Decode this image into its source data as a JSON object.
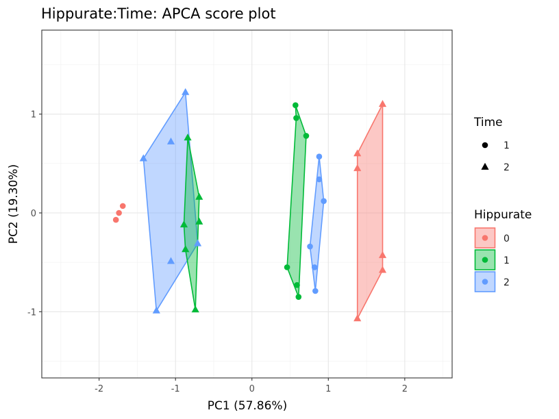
{
  "chart_data": {
    "type": "scatter",
    "title": "Hippurate:Time: APCA score plot",
    "xlabel": "PC1 (57.86%)",
    "ylabel": "PC2 (19.30%)",
    "xlim": [
      -2.75,
      2.62
    ],
    "ylim": [
      -1.67,
      1.85
    ],
    "x_ticks": [
      -2,
      -1,
      0,
      1,
      2
    ],
    "x_tick_labels": [
      "-2",
      "-1",
      "0",
      "1",
      "2"
    ],
    "y_ticks": [
      -1,
      0,
      1
    ],
    "y_tick_labels": [
      "-1",
      "0",
      "1"
    ],
    "grid": true,
    "colors": {
      "0": "#f8766d",
      "1": "#00ba38",
      "2": "#619cff"
    },
    "legend_shape": {
      "title": "Time",
      "items": [
        {
          "label": "1",
          "shape": "circle"
        },
        {
          "label": "2",
          "shape": "triangle"
        }
      ]
    },
    "legend_color": {
      "title": "Hippurate",
      "items": [
        {
          "label": "0",
          "group": "0"
        },
        {
          "label": "1",
          "group": "1"
        },
        {
          "label": "2",
          "group": "2"
        }
      ]
    },
    "hulls": [
      {
        "group": "2",
        "points": [
          [
            -0.87,
            1.22
          ],
          [
            -1.42,
            0.55
          ],
          [
            -1.25,
            -0.99
          ],
          [
            -0.71,
            -0.31
          ]
        ]
      },
      {
        "group": "1",
        "points": [
          [
            -0.84,
            0.76
          ],
          [
            -0.69,
            0.16
          ],
          [
            -0.74,
            -0.98
          ],
          [
            -0.87,
            -0.37
          ],
          [
            -0.89,
            -0.12
          ]
        ]
      },
      {
        "group": "1",
        "points": [
          [
            0.57,
            1.09
          ],
          [
            0.71,
            0.78
          ],
          [
            0.61,
            -0.85
          ],
          [
            0.46,
            -0.55
          ],
          [
            0.58,
            0.96
          ]
        ]
      },
      {
        "group": "2",
        "points": [
          [
            0.88,
            0.57
          ],
          [
            0.94,
            0.12
          ],
          [
            0.83,
            -0.79
          ],
          [
            0.76,
            -0.34
          ]
        ]
      },
      {
        "group": "0",
        "points": [
          [
            1.71,
            1.1
          ],
          [
            1.71,
            -0.58
          ],
          [
            1.38,
            -1.07
          ],
          [
            1.38,
            0.45
          ],
          [
            1.38,
            0.6
          ]
        ]
      }
    ],
    "points": [
      {
        "group": "0",
        "time": "1",
        "x": -1.69,
        "y": 0.07
      },
      {
        "group": "0",
        "time": "1",
        "x": -1.74,
        "y": 0.0
      },
      {
        "group": "0",
        "time": "1",
        "x": -1.78,
        "y": -0.07
      },
      {
        "group": "2",
        "time": "2",
        "x": -0.87,
        "y": 1.22
      },
      {
        "group": "2",
        "time": "2",
        "x": -1.42,
        "y": 0.55
      },
      {
        "group": "2",
        "time": "2",
        "x": -1.06,
        "y": 0.72
      },
      {
        "group": "2",
        "time": "2",
        "x": -1.06,
        "y": -0.49
      },
      {
        "group": "2",
        "time": "2",
        "x": -1.25,
        "y": -0.99
      },
      {
        "group": "2",
        "time": "2",
        "x": -0.71,
        "y": -0.31
      },
      {
        "group": "1",
        "time": "2",
        "x": -0.84,
        "y": 0.76
      },
      {
        "group": "1",
        "time": "2",
        "x": -0.69,
        "y": 0.16
      },
      {
        "group": "1",
        "time": "2",
        "x": -0.69,
        "y": -0.09
      },
      {
        "group": "1",
        "time": "2",
        "x": -0.89,
        "y": -0.12
      },
      {
        "group": "1",
        "time": "2",
        "x": -0.87,
        "y": -0.37
      },
      {
        "group": "1",
        "time": "2",
        "x": -0.74,
        "y": -0.98
      },
      {
        "group": "1",
        "time": "1",
        "x": 0.57,
        "y": 1.09
      },
      {
        "group": "1",
        "time": "1",
        "x": 0.58,
        "y": 0.96
      },
      {
        "group": "1",
        "time": "1",
        "x": 0.71,
        "y": 0.78
      },
      {
        "group": "1",
        "time": "1",
        "x": 0.46,
        "y": -0.55
      },
      {
        "group": "1",
        "time": "1",
        "x": 0.59,
        "y": -0.73
      },
      {
        "group": "1",
        "time": "1",
        "x": 0.61,
        "y": -0.85
      },
      {
        "group": "2",
        "time": "1",
        "x": 0.88,
        "y": 0.57
      },
      {
        "group": "2",
        "time": "1",
        "x": 0.88,
        "y": 0.34
      },
      {
        "group": "2",
        "time": "1",
        "x": 0.94,
        "y": 0.12
      },
      {
        "group": "2",
        "time": "1",
        "x": 0.76,
        "y": -0.34
      },
      {
        "group": "2",
        "time": "1",
        "x": 0.82,
        "y": -0.55
      },
      {
        "group": "2",
        "time": "1",
        "x": 0.83,
        "y": -0.79
      },
      {
        "group": "0",
        "time": "2",
        "x": 1.71,
        "y": 1.1
      },
      {
        "group": "0",
        "time": "2",
        "x": 1.38,
        "y": 0.6
      },
      {
        "group": "0",
        "time": "2",
        "x": 1.38,
        "y": 0.45
      },
      {
        "group": "0",
        "time": "2",
        "x": 1.71,
        "y": -0.43
      },
      {
        "group": "0",
        "time": "2",
        "x": 1.71,
        "y": -0.58
      },
      {
        "group": "0",
        "time": "2",
        "x": 1.38,
        "y": -1.07
      }
    ]
  }
}
